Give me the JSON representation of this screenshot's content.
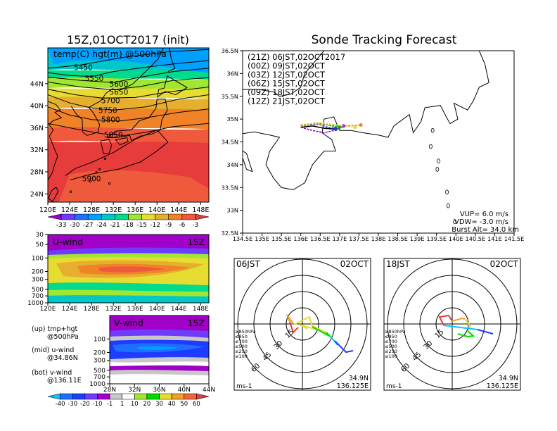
{
  "chart_data": [
    {
      "type": "heatmap",
      "title": "15Z,01OCT2017 (init)",
      "field_label": "temp(C) hgt(m) @500hPa",
      "x_ticks": [
        "120E",
        "124E",
        "128E",
        "132E",
        "136E",
        "140E",
        "144E",
        "148E"
      ],
      "y_ticks": [
        "24N",
        "28N",
        "32N",
        "36N",
        "40N",
        "44N"
      ],
      "contours": [
        {
          "label": "5450",
          "lon": 126.5,
          "lat": 47.0
        },
        {
          "label": "5550",
          "lon": 128.5,
          "lat": 45.0
        },
        {
          "label": "5600",
          "lon": 133.0,
          "lat": 44.0
        },
        {
          "label": "5650",
          "lon": 133.0,
          "lat": 42.5
        },
        {
          "label": "5700",
          "lon": 131.5,
          "lat": 41.0
        },
        {
          "label": "5750",
          "lon": 131.0,
          "lat": 39.2
        },
        {
          "label": "5800",
          "lon": 131.5,
          "lat": 37.5
        },
        {
          "label": "5850",
          "lon": 132.0,
          "lat": 34.8
        },
        {
          "label": "5900",
          "lon": 128.0,
          "lat": 26.8
        }
      ],
      "colorbar": [
        "-33",
        "-30",
        "-27",
        "-24",
        "-21",
        "-18",
        "-15",
        "-12",
        "-9",
        "-6",
        "-3"
      ]
    },
    {
      "type": "line",
      "title": "Sonde Tracking Forecast",
      "x_ticks": [
        "134.5E",
        "135E",
        "135.5E",
        "136E",
        "136.5E",
        "137E",
        "137.5E",
        "138E",
        "138.5E",
        "139E",
        "139.5E",
        "140E",
        "140.5E",
        "141E",
        "141.5E"
      ],
      "y_ticks": [
        "32.5N",
        "33N",
        "33.5N",
        "34N",
        "34.5N",
        "35N",
        "35.5N",
        "36N",
        "36.5N"
      ],
      "xlim": [
        134.5,
        141.5
      ],
      "ylim": [
        32.5,
        36.5
      ],
      "series": [
        {
          "name": "(21Z) 06JST,02OCT2017",
          "color": "#000000",
          "points": [
            [
              136.0,
              34.82
            ],
            [
              136.3,
              34.85
            ],
            [
              136.6,
              34.8
            ],
            [
              136.9,
              34.78
            ]
          ]
        },
        {
          "name": "(00Z) 09JST,02OCT",
          "color": "#8a00d4",
          "points": [
            [
              136.0,
              34.82
            ],
            [
              136.3,
              34.75
            ],
            [
              136.6,
              34.7
            ],
            [
              136.9,
              34.76
            ],
            [
              137.1,
              34.85
            ]
          ]
        },
        {
          "name": "(03Z) 12JST,02OCT",
          "color": "#1e3cff",
          "points": [
            [
              136.0,
              34.85
            ],
            [
              136.4,
              34.9
            ],
            [
              136.7,
              34.82
            ],
            [
              136.9,
              34.8
            ]
          ]
        },
        {
          "name": "(06Z) 15JST,02OCT",
          "color": "#00b400",
          "points": [
            [
              136.0,
              34.86
            ],
            [
              136.4,
              34.92
            ],
            [
              136.8,
              34.85
            ],
            [
              137.0,
              34.82
            ]
          ]
        },
        {
          "name": "(09Z) 18JST,02OCT",
          "color": "#e6dc32",
          "points": [
            [
              136.0,
              34.88
            ],
            [
              136.5,
              34.92
            ],
            [
              137.0,
              34.86
            ],
            [
              137.4,
              34.82
            ]
          ]
        },
        {
          "name": "(12Z) 21JST,02OCT",
          "color": "#f0823c",
          "points": [
            [
              136.0,
              34.85
            ],
            [
              136.5,
              34.88
            ],
            [
              137.1,
              34.85
            ],
            [
              137.55,
              34.87
            ]
          ]
        }
      ],
      "vup": "VUP=  6.0 m/s",
      "vdw": "VDW= -3.0 m/s",
      "burst": "Burst Alt= 34.0 km"
    },
    {
      "type": "heatmap",
      "title": "U-wind",
      "time": "15Z",
      "x_ticks": [
        "120E",
        "124E",
        "128E",
        "132E",
        "136E",
        "140E",
        "144E",
        "148E"
      ],
      "y_ticks": [
        "30",
        "50",
        "100",
        "200",
        "300",
        "500",
        "700",
        "1000"
      ]
    },
    {
      "type": "heatmap",
      "title": "V-wind",
      "time": "15Z",
      "x_ticks": [
        "28N",
        "32N",
        "36N",
        "40N",
        "44N"
      ],
      "y_ticks": [
        "100",
        "200",
        "300",
        "500",
        "700",
        "1000"
      ],
      "colorbar": [
        "-40",
        "-30",
        "-20",
        "-10",
        "-1",
        "1",
        "10",
        "20",
        "30",
        "40",
        "50",
        "60"
      ]
    },
    {
      "type": "line",
      "title": "06JST",
      "date": "02OCT",
      "ring_labels": [
        "15",
        "30",
        "45",
        "60"
      ],
      "levels": [
        "≥850hPa",
        "≤850",
        "≤700",
        "≤500",
        "≤250",
        "≤100"
      ],
      "unit": "ms-1",
      "lat": "34.9N",
      "lon": "136.125E"
    },
    {
      "type": "line",
      "title": "18JST",
      "date": "02OCT",
      "ring_labels": [
        "15",
        "30",
        "45",
        "60"
      ],
      "levels": [
        "≥850hPa",
        "≤850",
        "≤700",
        "≤500",
        "≤250",
        "≤100"
      ],
      "unit": "ms-1",
      "lat": "34.9N",
      "lon": "136.125E"
    }
  ],
  "side_notes": {
    "up": "(up) tmp+hgt",
    "up2": "@500hPa",
    "mid": "(mid) u-wind",
    "mid2": "@34.86N",
    "bot": "(bot) v-wind",
    "bot2": "@136.11E"
  },
  "colors": {
    "temp_scale": [
      "#a000c8",
      "#6e3cff",
      "#1e6eff",
      "#00a0ff",
      "#00c8c8",
      "#00dc8c",
      "#a0e632",
      "#e6dc32",
      "#e6af2d",
      "#f08228",
      "#f05a3c",
      "#e63c3c"
    ],
    "wind_scale": [
      "#00c8ff",
      "#1e6eff",
      "#1e3cff",
      "#6e3cff",
      "#a000c8",
      "#c8c8c8",
      "#ffffff",
      "#a0e632",
      "#00dc00",
      "#e6dc32",
      "#f0a028",
      "#f0643c",
      "#e63c3c"
    ]
  }
}
